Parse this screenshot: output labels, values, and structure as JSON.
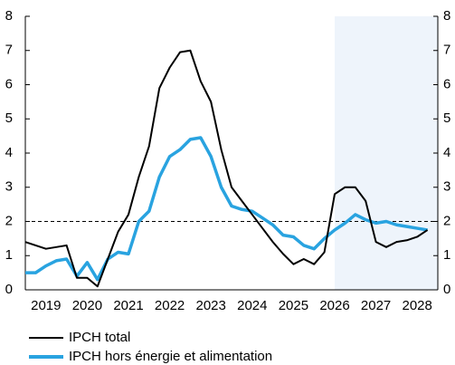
{
  "chart_data": {
    "type": "line",
    "x": [
      2019,
      2019.25,
      2019.5,
      2019.75,
      2020,
      2020.25,
      2020.5,
      2020.75,
      2021,
      2021.25,
      2021.5,
      2021.75,
      2022,
      2022.25,
      2022.5,
      2022.75,
      2023,
      2023.25,
      2023.5,
      2023.75,
      2024,
      2024.25,
      2024.5,
      2024.75,
      2025,
      2025.25,
      2025.5,
      2025.75,
      2026,
      2026.25,
      2026.5,
      2026.75,
      2027,
      2027.25,
      2027.5,
      2027.75,
      2028,
      2028.25,
      2028.5,
      2028.75
    ],
    "series": [
      {
        "name": "IPCH total",
        "color": "#000000",
        "values": [
          1.4,
          1.3,
          1.2,
          1.25,
          1.3,
          0.35,
          0.35,
          0.1,
          0.9,
          1.7,
          2.2,
          3.3,
          4.2,
          5.9,
          6.5,
          6.95,
          7.0,
          6.1,
          5.5,
          4.1,
          3.0,
          2.6,
          2.2,
          1.8,
          1.4,
          1.05,
          0.75,
          0.9,
          0.75,
          1.1,
          2.8,
          3.0,
          3.0,
          2.6,
          1.4,
          1.25,
          1.4,
          1.45,
          1.55,
          1.75
        ]
      },
      {
        "name": "IPCH hors énergie et alimentation",
        "color": "#29a3e0",
        "values": [
          0.5,
          0.5,
          0.7,
          0.85,
          0.9,
          0.4,
          0.8,
          0.3,
          0.9,
          1.1,
          1.05,
          2.0,
          2.3,
          3.3,
          3.9,
          4.1,
          4.4,
          4.45,
          3.9,
          3.0,
          2.45,
          2.35,
          2.3,
          2.1,
          1.9,
          1.6,
          1.55,
          1.3,
          1.2,
          1.5,
          1.75,
          1.95,
          2.2,
          2.05,
          1.95,
          2.0,
          1.9,
          1.85,
          1.8,
          1.75
        ]
      }
    ],
    "xlim": [
      2019,
      2029
    ],
    "xticks": [
      {
        "value": 2019.5,
        "label": "2019"
      },
      {
        "value": 2020.5,
        "label": "2020"
      },
      {
        "value": 2021.5,
        "label": "2021"
      },
      {
        "value": 2022.5,
        "label": "2022"
      },
      {
        "value": 2023.5,
        "label": "2023"
      },
      {
        "value": 2024.5,
        "label": "2024"
      },
      {
        "value": 2025.5,
        "label": "2025"
      },
      {
        "value": 2026.5,
        "label": "2026"
      },
      {
        "value": 2027.5,
        "label": "2027"
      },
      {
        "value": 2028.5,
        "label": "2028"
      }
    ],
    "ylim": [
      0,
      8
    ],
    "yticks": [
      0,
      1,
      2,
      3,
      4,
      5,
      6,
      7,
      8
    ],
    "y2lim": [
      0,
      8
    ],
    "y2ticks": [
      0,
      1,
      2,
      3,
      4,
      5,
      6,
      7,
      8
    ],
    "reference_line": 2,
    "projection_start": 2026.5
  }
}
